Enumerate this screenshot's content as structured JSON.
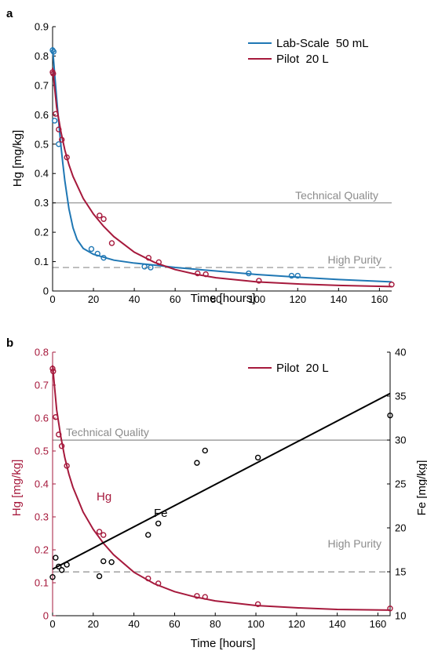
{
  "chart_data": [
    {
      "panel_label": "a",
      "type": "scatter",
      "xlabel": "Time [hours]",
      "ylabel": "Hg [mg/kg]",
      "xlim": [
        0,
        166
      ],
      "ylim": [
        0,
        0.9
      ],
      "x_ticks": [
        "0",
        "20",
        "40",
        "60",
        "80",
        "100",
        "120",
        "140",
        "160"
      ],
      "y_ticks": [
        "0",
        "0.1",
        "0.2",
        "0.3",
        "0.4",
        "0.5",
        "0.6",
        "0.7",
        "0.8",
        "0.9"
      ],
      "legend_position": "top-right",
      "reference_lines": [
        {
          "label": "Technical Quality",
          "y": 0.3,
          "style": "solid",
          "color": "#8c8c8c"
        },
        {
          "label": "High Purity",
          "y": 0.08,
          "style": "dashed",
          "color": "#8c8c8c"
        }
      ],
      "series": [
        {
          "name": "Lab-Scale  50 mL",
          "color": "#1f77b4",
          "points": [
            [
              0,
              0.82
            ],
            [
              0.5,
              0.815
            ],
            [
              1,
              0.58
            ],
            [
              3,
              0.5
            ],
            [
              19,
              0.143
            ],
            [
              22,
              0.127
            ],
            [
              25,
              0.113
            ],
            [
              45,
              0.083
            ],
            [
              48,
              0.08
            ],
            [
              96,
              0.06
            ],
            [
              117,
              0.052
            ],
            [
              120,
              0.052
            ]
          ],
          "fit": [
            [
              0,
              0.83
            ],
            [
              1,
              0.74
            ],
            [
              2,
              0.655
            ],
            [
              3,
              0.575
            ],
            [
              4,
              0.5
            ],
            [
              5,
              0.435
            ],
            [
              6,
              0.375
            ],
            [
              8,
              0.28
            ],
            [
              10,
              0.215
            ],
            [
              12,
              0.175
            ],
            [
              15,
              0.145
            ],
            [
              20,
              0.125
            ],
            [
              30,
              0.105
            ],
            [
              40,
              0.095
            ],
            [
              50,
              0.088
            ],
            [
              60,
              0.08
            ],
            [
              80,
              0.068
            ],
            [
              100,
              0.056
            ],
            [
              120,
              0.047
            ],
            [
              140,
              0.039
            ],
            [
              166,
              0.031
            ]
          ]
        },
        {
          "name": "Pilot  20 L",
          "color": "#a6193c",
          "points": [
            [
              0,
              0.745
            ],
            [
              0.3,
              0.74
            ],
            [
              1.5,
              0.603
            ],
            [
              3,
              0.55
            ],
            [
              4.5,
              0.515
            ],
            [
              7,
              0.455
            ],
            [
              23,
              0.257
            ],
            [
              25,
              0.245
            ],
            [
              29,
              0.163
            ],
            [
              47,
              0.113
            ],
            [
              52,
              0.098
            ],
            [
              71,
              0.06
            ],
            [
              75,
              0.057
            ],
            [
              101,
              0.035
            ],
            [
              166,
              0.022
            ]
          ],
          "fit": [
            [
              0,
              0.76
            ],
            [
              2,
              0.625
            ],
            [
              4,
              0.545
            ],
            [
              6,
              0.48
            ],
            [
              8,
              0.43
            ],
            [
              10,
              0.39
            ],
            [
              15,
              0.315
            ],
            [
              20,
              0.262
            ],
            [
              25,
              0.22
            ],
            [
              30,
              0.185
            ],
            [
              40,
              0.132
            ],
            [
              50,
              0.097
            ],
            [
              60,
              0.073
            ],
            [
              70,
              0.057
            ],
            [
              80,
              0.045
            ],
            [
              100,
              0.031
            ],
            [
              120,
              0.024
            ],
            [
              140,
              0.019
            ],
            [
              166,
              0.015
            ]
          ]
        }
      ]
    },
    {
      "panel_label": "b",
      "type": "scatter",
      "xlabel": "Time [hours]",
      "ylabel": "Hg [mg/kg]",
      "ylabel_right": "Fe [mg/kg]",
      "xlim": [
        0,
        166
      ],
      "ylim": [
        0,
        0.8
      ],
      "ylim_right": [
        10,
        40
      ],
      "x_ticks": [
        "0",
        "20",
        "40",
        "60",
        "80",
        "100",
        "120",
        "140",
        "160"
      ],
      "y_ticks": [
        "0",
        "0.1",
        "0.2",
        "0.3",
        "0.4",
        "0.5",
        "0.6",
        "0.7",
        "0.8"
      ],
      "y_ticks_right": [
        "10",
        "15",
        "20",
        "25",
        "30",
        "35",
        "40"
      ],
      "legend_position": "top-right",
      "reference_lines": [
        {
          "label": "Technical Quality",
          "y": 0.533,
          "style": "solid",
          "color": "#8c8c8c"
        },
        {
          "label": "High Purity",
          "y": 0.133,
          "style": "dashed",
          "color": "#8c8c8c"
        }
      ],
      "annotations": [
        {
          "text": "Hg",
          "x": 28,
          "y": 0.28,
          "color": "#a6193c"
        },
        {
          "text": "Fe",
          "x": 53,
          "y": 0.205,
          "color": "#000000"
        }
      ],
      "series": [
        {
          "name": "Pilot  20 L",
          "axis": "left",
          "color": "#a6193c",
          "points": [
            [
              0,
              0.75
            ],
            [
              0.3,
              0.742
            ],
            [
              1.5,
              0.603
            ],
            [
              3,
              0.55
            ],
            [
              4.5,
              0.515
            ],
            [
              7,
              0.455
            ],
            [
              23,
              0.255
            ],
            [
              25,
              0.245
            ],
            [
              47,
              0.113
            ],
            [
              52,
              0.098
            ],
            [
              71,
              0.06
            ],
            [
              75,
              0.057
            ],
            [
              101,
              0.035
            ],
            [
              166,
              0.022
            ]
          ],
          "fit": [
            [
              0,
              0.76
            ],
            [
              2,
              0.625
            ],
            [
              4,
              0.545
            ],
            [
              6,
              0.48
            ],
            [
              8,
              0.43
            ],
            [
              10,
              0.39
            ],
            [
              15,
              0.315
            ],
            [
              20,
              0.262
            ],
            [
              25,
              0.22
            ],
            [
              30,
              0.185
            ],
            [
              40,
              0.132
            ],
            [
              50,
              0.097
            ],
            [
              60,
              0.073
            ],
            [
              70,
              0.057
            ],
            [
              80,
              0.045
            ],
            [
              100,
              0.031
            ],
            [
              120,
              0.024
            ],
            [
              140,
              0.019
            ],
            [
              166,
              0.017
            ]
          ]
        },
        {
          "name": "",
          "axis": "right",
          "color": "#000000",
          "points": [
            [
              0,
              14.4
            ],
            [
              1.5,
              16.6
            ],
            [
              3,
              15.6
            ],
            [
              4.5,
              15.2
            ],
            [
              7,
              15.8
            ],
            [
              23,
              14.5
            ],
            [
              25,
              16.2
            ],
            [
              29,
              16.1
            ],
            [
              47,
              19.2
            ],
            [
              52,
              20.5
            ],
            [
              71,
              27.4
            ],
            [
              75,
              28.8
            ],
            [
              101,
              28.0
            ],
            [
              166,
              32.8
            ]
          ],
          "fit": [
            [
              0,
              15.3
            ],
            [
              166,
              35.3
            ]
          ]
        }
      ]
    }
  ]
}
